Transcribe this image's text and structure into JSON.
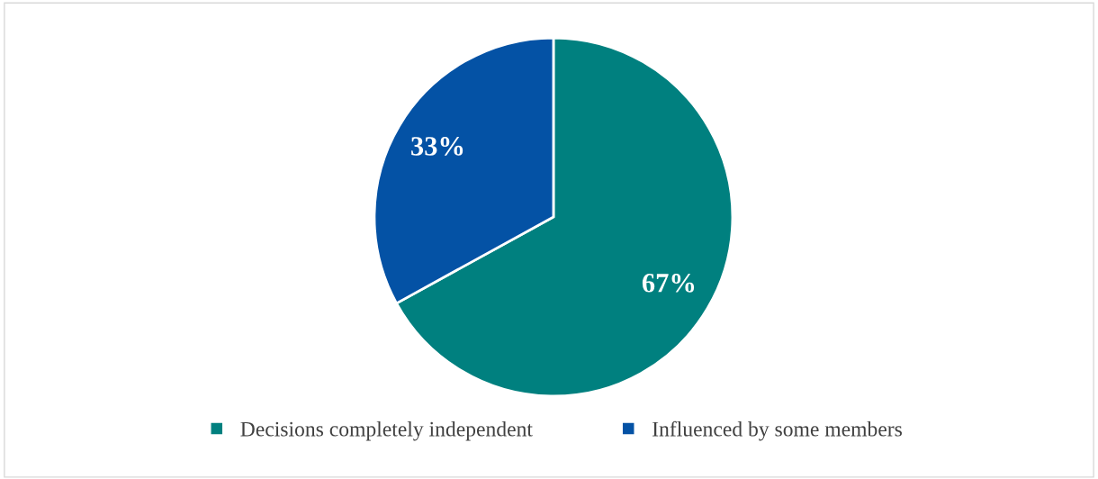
{
  "chart_data": {
    "type": "pie",
    "categories": [
      "Decisions completely independent",
      "Influenced by some members"
    ],
    "values": [
      67,
      33
    ],
    "colors": [
      "#00807f",
      "#0452a5"
    ],
    "value_labels": [
      "67%",
      "33%"
    ],
    "legend": "bottom"
  }
}
